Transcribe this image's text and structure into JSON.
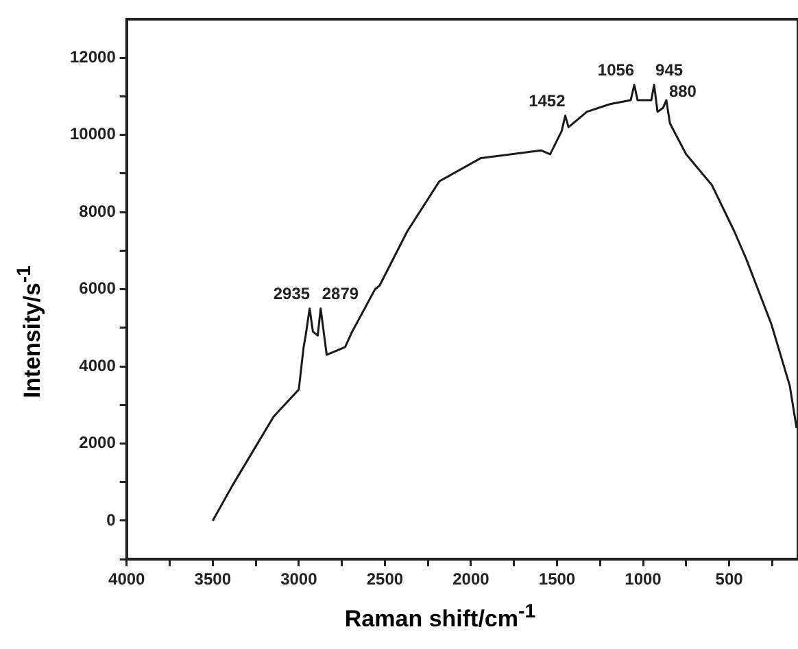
{
  "chart_data": {
    "type": "line",
    "xlabel": "Raman shift/cm$^{-1}$",
    "ylabel": "Intensity/s$^{-1}$",
    "x": [
      3500,
      3387,
      3280,
      3146,
      3000,
      2972,
      2960,
      2937,
      2918,
      2890,
      2873,
      2838,
      2731,
      2690,
      2557,
      2530,
      2370,
      2183,
      1942,
      1593,
      1540,
      1473,
      1452,
      1433,
      1326,
      1192,
      1072,
      1051,
      1032,
      952,
      936,
      916,
      884,
      865,
      844,
      750,
      600,
      470,
      402,
      255,
      148,
      108
    ],
    "series": [
      {
        "color": "#1a1a1a",
        "values": [
          0,
          900,
          1700,
          2700,
          3400,
          4500,
          4800,
          5500,
          4900,
          4800,
          5500,
          4300,
          4500,
          4900,
          6000,
          6100,
          7500,
          8800,
          9400,
          9600,
          9500,
          10100,
          10500,
          10200,
          10600,
          10800,
          10900,
          11300,
          10900,
          10900,
          11300,
          10600,
          10700,
          10900,
          10300,
          9500,
          8700,
          7500,
          6800,
          5100,
          3500,
          2400
        ]
      }
    ],
    "xlim": [
      4000,
      100
    ],
    "xticks": [
      4000,
      {
        "value": 3750,
        "label": null
      },
      3500,
      {
        "value": 3250,
        "label": null
      },
      3000,
      {
        "value": 2750,
        "label": null
      },
      2500,
      {
        "value": 2250,
        "label": null
      },
      2000,
      {
        "value": 1750,
        "label": null
      },
      1500,
      {
        "value": 1250,
        "label": null
      },
      1000,
      {
        "value": 750,
        "label": null
      },
      500,
      {
        "value": 250,
        "label": null
      }
    ],
    "ylim": [
      -1000,
      13000
    ],
    "yticks": [
      {
        "value": -1000,
        "label": null
      },
      0,
      {
        "value": 1000,
        "label": null
      },
      2000,
      {
        "value": 3000,
        "label": null
      },
      4000,
      {
        "value": 5000,
        "label": null
      },
      6000,
      {
        "value": 7000,
        "label": null
      },
      8000,
      {
        "value": 9000,
        "label": null
      },
      10000,
      {
        "value": 11000,
        "label": null
      },
      12000
    ],
    "grid": false,
    "legend": false,
    "marker": "none",
    "line_style": "solid",
    "annotations": [
      {
        "text": "2935",
        "x": 2935,
        "y": 5500
      },
      {
        "text": "2879",
        "x": 2873,
        "y": 5500
      },
      {
        "text": "1452",
        "x": 1452,
        "y": 10500
      },
      {
        "text": "1056",
        "x": 1051,
        "y": 11300
      },
      {
        "text": "945",
        "x": 936,
        "y": 11300
      },
      {
        "text": "880",
        "x": 865,
        "y": 10900
      }
    ]
  }
}
